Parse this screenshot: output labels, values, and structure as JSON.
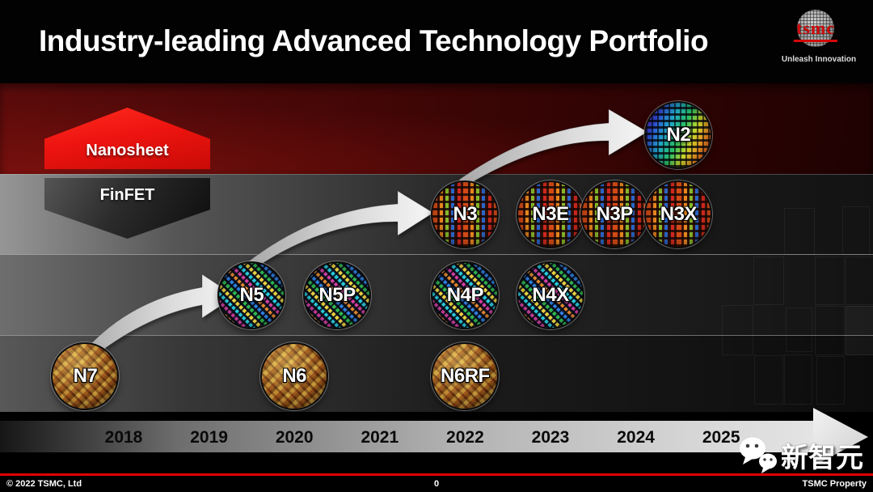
{
  "slide": {
    "title": "Industry-leading Advanced Technology Portfolio"
  },
  "logo": {
    "brand": "tsmc",
    "tagline": "Unleash Innovation"
  },
  "badges": {
    "nanosheet": "Nanosheet",
    "finfet": "FinFET"
  },
  "timeline": {
    "years": [
      "2018",
      "2019",
      "2020",
      "2021",
      "2022",
      "2023",
      "2024",
      "2025"
    ]
  },
  "wafers": [
    {
      "label": "N7",
      "year": 2017.55,
      "row": "n7",
      "style": "gold"
    },
    {
      "label": "N6",
      "year": 2020,
      "row": "n7",
      "style": "gold"
    },
    {
      "label": "N6RF",
      "year": 2022,
      "row": "n7",
      "style": "gold"
    },
    {
      "label": "N5",
      "year": 2019.5,
      "row": "n5",
      "style": "rainbow"
    },
    {
      "label": "N5P",
      "year": 2020.5,
      "row": "n5",
      "style": "rainbow"
    },
    {
      "label": "N4P",
      "year": 2022,
      "row": "n5",
      "style": "rainbow"
    },
    {
      "label": "N4X",
      "year": 2023,
      "row": "n5",
      "style": "rainbow"
    },
    {
      "label": "N3",
      "year": 2022,
      "row": "n3",
      "style": "n3"
    },
    {
      "label": "N3E",
      "year": 2023,
      "row": "n3",
      "style": "n3"
    },
    {
      "label": "N3P",
      "year": 2023.75,
      "row": "n3",
      "style": "n3"
    },
    {
      "label": "N3X",
      "year": 2024.5,
      "row": "n3",
      "style": "n3"
    },
    {
      "label": "N2",
      "year": 2024.5,
      "row": "nanosheet",
      "style": "n2"
    }
  ],
  "arrows": [
    {
      "from": "N7",
      "to": "N5"
    },
    {
      "from": "N5",
      "to": "N3"
    },
    {
      "from": "N3",
      "to": "N2"
    }
  ],
  "watermark": {
    "text": "新智元"
  },
  "footer": {
    "copyright": "© 2022 TSMC, Ltd",
    "page_number": "0",
    "property_note": "TSMC Property"
  },
  "colors": {
    "accent_red": "#ee1410",
    "footer_line_red": "#e00000",
    "band_red": "#470707"
  }
}
